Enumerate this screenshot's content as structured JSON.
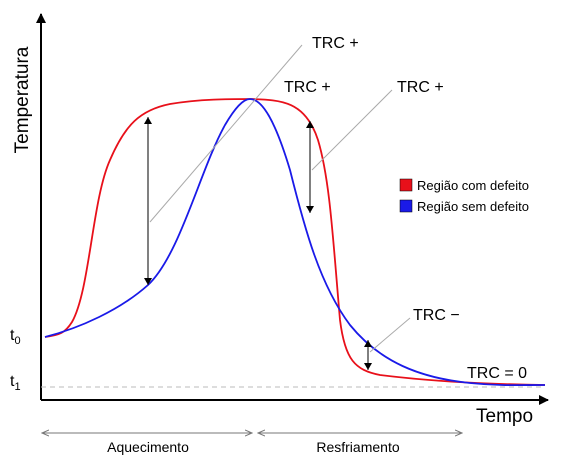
{
  "axes": {
    "y_label": "Temperatura",
    "x_label": "Tempo"
  },
  "levels": [
    {
      "base": "t",
      "sub": "0"
    },
    {
      "base": "t",
      "sub": "1"
    }
  ],
  "annotations": [
    "TRC +",
    "TRC +",
    "TRC +",
    "TRC −",
    "TRC = 0"
  ],
  "legend": [
    {
      "name": "Região com defeito",
      "color": "#e8101a"
    },
    {
      "name": "Região sem defeito",
      "color": "#1a1ae8"
    }
  ],
  "phases": [
    "Aquecimento",
    "Resfriamento"
  ]
}
